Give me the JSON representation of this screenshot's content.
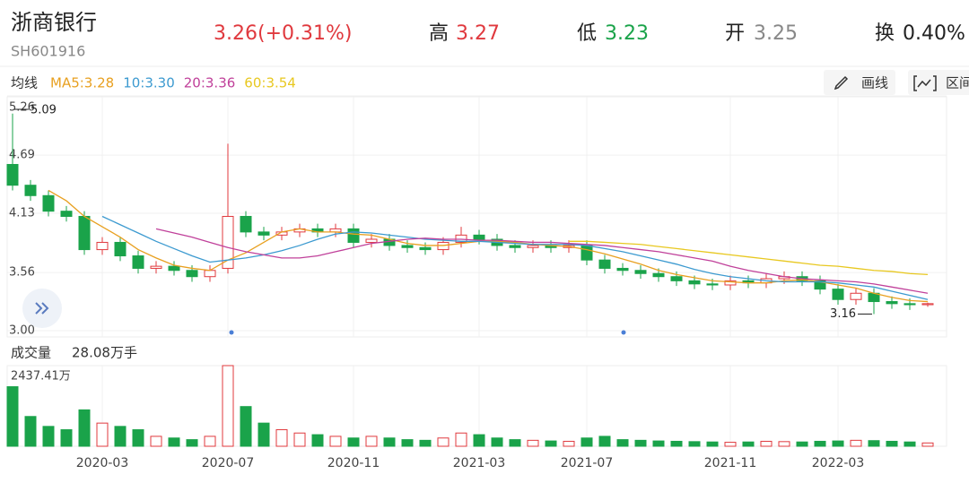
{
  "header": {
    "name": "浙商银行",
    "code": "SH601916",
    "price": "3.26(+0.31%)",
    "stats": [
      {
        "label": "高",
        "value": "3.27"
      },
      {
        "label": "低",
        "value": "3.23"
      },
      {
        "label": "开",
        "value": "3.25"
      },
      {
        "label": "换",
        "value": "0.40%"
      }
    ]
  },
  "toolbar": {
    "draw": "画线",
    "range": "区间"
  },
  "chart_data": [
    {
      "type": "candlestick",
      "legend_title": "均线",
      "categories": [
        null,
        null,
        null,
        null,
        null,
        "2020-03",
        null,
        null,
        null,
        null,
        null,
        null,
        "2020-07",
        null,
        null,
        null,
        null,
        null,
        null,
        "2020-11",
        null,
        null,
        null,
        null,
        null,
        null,
        "2021-03",
        null,
        null,
        null,
        null,
        null,
        "2021-07",
        null,
        null,
        null,
        null,
        null,
        null,
        null,
        "2021-11",
        null,
        null,
        null,
        null,
        null,
        "2022-03",
        null,
        null,
        null,
        null,
        null
      ],
      "open": [
        4.6,
        4.4,
        4.3,
        4.15,
        4.1,
        3.78,
        3.85,
        3.72,
        3.6,
        3.62,
        3.58,
        3.52,
        3.6,
        4.1,
        3.95,
        3.92,
        3.95,
        3.98,
        3.95,
        3.98,
        3.85,
        3.88,
        3.82,
        3.8,
        3.78,
        3.85,
        3.92,
        3.88,
        3.82,
        3.8,
        3.82,
        3.8,
        3.82,
        3.68,
        3.6,
        3.58,
        3.55,
        3.52,
        3.48,
        3.45,
        3.44,
        3.48,
        3.46,
        3.5,
        3.52,
        3.48,
        3.4,
        3.3,
        3.36,
        3.28,
        3.26,
        3.25
      ],
      "high": [
        5.09,
        4.45,
        4.35,
        4.2,
        4.15,
        3.9,
        3.9,
        3.77,
        3.67,
        3.67,
        3.63,
        3.63,
        4.8,
        4.15,
        4.0,
        4.0,
        4.03,
        4.03,
        4.03,
        4.03,
        3.93,
        3.93,
        3.87,
        3.85,
        3.9,
        4.0,
        3.97,
        3.93,
        3.87,
        3.87,
        3.87,
        3.87,
        3.87,
        3.73,
        3.65,
        3.63,
        3.6,
        3.57,
        3.53,
        3.5,
        3.53,
        3.53,
        3.55,
        3.57,
        3.57,
        3.53,
        3.45,
        3.41,
        3.41,
        3.33,
        3.31,
        3.27
      ],
      "low": [
        4.35,
        4.25,
        4.1,
        4.05,
        3.73,
        3.73,
        3.67,
        3.55,
        3.55,
        3.53,
        3.47,
        3.47,
        3.55,
        3.9,
        3.87,
        3.87,
        3.9,
        3.9,
        3.9,
        3.8,
        3.8,
        3.77,
        3.75,
        3.73,
        3.73,
        3.8,
        3.83,
        3.77,
        3.75,
        3.75,
        3.75,
        3.75,
        3.63,
        3.55,
        3.53,
        3.5,
        3.47,
        3.43,
        3.4,
        3.39,
        3.39,
        3.41,
        3.41,
        3.45,
        3.43,
        3.35,
        3.25,
        3.25,
        3.16,
        3.21,
        3.2,
        3.23
      ],
      "close": [
        4.4,
        4.3,
        4.15,
        4.1,
        3.78,
        3.85,
        3.72,
        3.6,
        3.62,
        3.58,
        3.52,
        3.58,
        4.1,
        3.95,
        3.92,
        3.95,
        3.98,
        3.95,
        3.98,
        3.85,
        3.88,
        3.82,
        3.8,
        3.78,
        3.85,
        3.92,
        3.88,
        3.82,
        3.8,
        3.82,
        3.8,
        3.82,
        3.68,
        3.6,
        3.58,
        3.55,
        3.52,
        3.48,
        3.45,
        3.44,
        3.48,
        3.46,
        3.5,
        3.52,
        3.48,
        3.4,
        3.3,
        3.36,
        3.28,
        3.26,
        3.25,
        3.26
      ],
      "up_color": "#e0393e",
      "down_color": "#1aa34a",
      "series": [
        {
          "name": "MA5:3.28",
          "color": "#e8a020",
          "values": [
            null,
            null,
            4.35,
            4.25,
            4.1,
            4.0,
            3.9,
            3.78,
            3.7,
            3.63,
            3.6,
            3.58,
            3.68,
            3.75,
            3.85,
            3.95,
            3.98,
            3.95,
            3.95,
            3.93,
            3.92,
            3.88,
            3.84,
            3.82,
            3.82,
            3.84,
            3.86,
            3.86,
            3.85,
            3.83,
            3.82,
            3.81,
            3.78,
            3.74,
            3.69,
            3.64,
            3.58,
            3.54,
            3.51,
            3.48,
            3.47,
            3.46,
            3.46,
            3.48,
            3.49,
            3.47,
            3.44,
            3.41,
            3.36,
            3.32,
            3.29,
            3.28
          ]
        },
        {
          "name": "10:3.30",
          "color": "#3c9ad0",
          "values": [
            null,
            null,
            null,
            null,
            null,
            4.1,
            4.02,
            3.94,
            3.86,
            3.79,
            3.72,
            3.66,
            3.68,
            3.7,
            3.73,
            3.77,
            3.82,
            3.88,
            3.93,
            3.95,
            3.94,
            3.92,
            3.9,
            3.88,
            3.87,
            3.86,
            3.86,
            3.85,
            3.84,
            3.83,
            3.83,
            3.83,
            3.82,
            3.79,
            3.76,
            3.72,
            3.68,
            3.64,
            3.59,
            3.55,
            3.52,
            3.5,
            3.48,
            3.47,
            3.47,
            3.47,
            3.46,
            3.44,
            3.42,
            3.38,
            3.34,
            3.3
          ]
        },
        {
          "name": "20:3.36",
          "color": "#c0409a",
          "values": [
            null,
            null,
            null,
            null,
            null,
            null,
            null,
            null,
            3.98,
            3.94,
            3.9,
            3.85,
            3.8,
            3.76,
            3.73,
            3.7,
            3.7,
            3.72,
            3.76,
            3.8,
            3.84,
            3.86,
            3.88,
            3.89,
            3.88,
            3.88,
            3.87,
            3.87,
            3.86,
            3.85,
            3.85,
            3.84,
            3.83,
            3.82,
            3.8,
            3.78,
            3.76,
            3.73,
            3.7,
            3.67,
            3.62,
            3.58,
            3.55,
            3.52,
            3.5,
            3.49,
            3.48,
            3.47,
            3.45,
            3.42,
            3.39,
            3.36
          ]
        },
        {
          "name": "60:3.54",
          "color": "#e8c820",
          "values": [
            null,
            null,
            null,
            null,
            null,
            null,
            null,
            null,
            null,
            null,
            null,
            null,
            null,
            null,
            null,
            null,
            null,
            null,
            null,
            null,
            null,
            null,
            null,
            null,
            null,
            null,
            null,
            null,
            null,
            null,
            null,
            3.86,
            3.86,
            3.85,
            3.84,
            3.83,
            3.81,
            3.79,
            3.77,
            3.75,
            3.73,
            3.71,
            3.69,
            3.67,
            3.65,
            3.63,
            3.62,
            3.6,
            3.58,
            3.57,
            3.55,
            3.54
          ]
        }
      ],
      "max_mark": 5.09,
      "min_mark": 3.16,
      "ylim": [
        3.0,
        5.26
      ],
      "yticks": [
        5.26,
        4.69,
        4.13,
        3.56,
        {
          "value": 3.0,
          "label": "3.00"
        }
      ],
      "grid": true
    },
    {
      "type": "bar",
      "title": "成交量",
      "subtitle": "28.08万手",
      "values": [
        1800,
        900,
        600,
        500,
        1100,
        700,
        600,
        500,
        300,
        250,
        200,
        300,
        2437.41,
        1200,
        700,
        500,
        400,
        350,
        300,
        250,
        300,
        250,
        200,
        180,
        250,
        400,
        350,
        250,
        200,
        180,
        160,
        150,
        250,
        300,
        200,
        180,
        160,
        150,
        140,
        130,
        120,
        130,
        150,
        140,
        130,
        150,
        160,
        180,
        170,
        150,
        130,
        100
      ],
      "ylim": [
        0,
        2437.41
      ],
      "yticks": [
        {
          "value": 2437.41,
          "label": "2437.41万"
        }
      ]
    }
  ]
}
